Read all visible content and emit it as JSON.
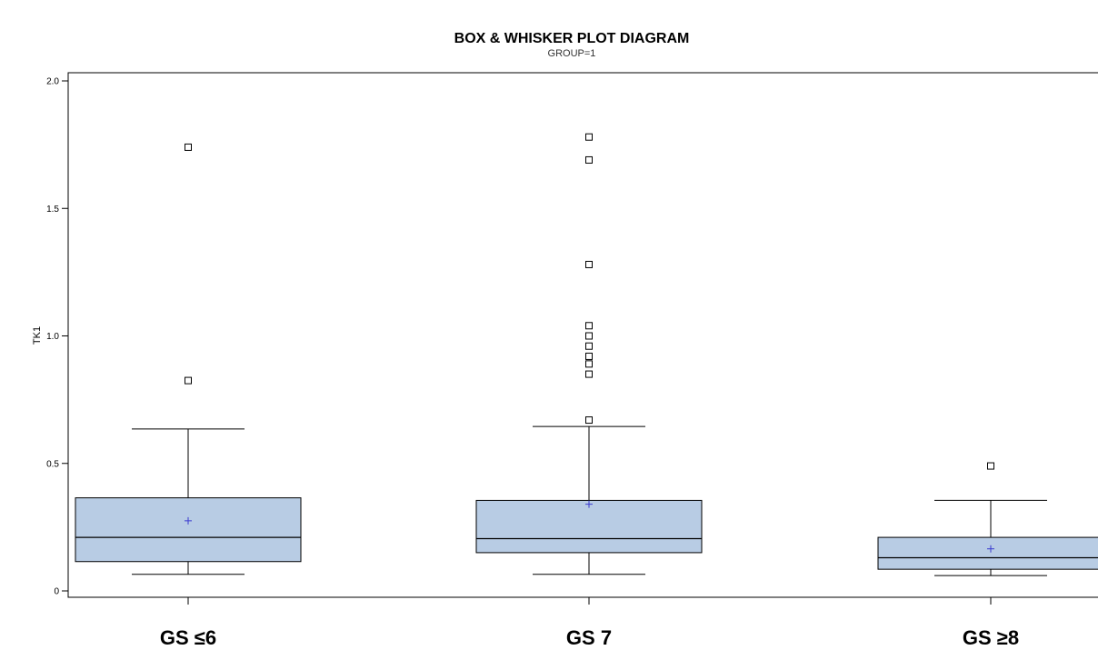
{
  "chart_data": {
    "type": "box",
    "title": "BOX & WHISKER PLOT DIAGRAM",
    "subtitle": "GROUP=1",
    "ylabel": "TK1",
    "xlabel": "",
    "ylim": [
      0,
      2.0
    ],
    "yticks": [
      0,
      0.5,
      1.0,
      1.5,
      2.0
    ],
    "ytick_labels": [
      "0",
      "0.5",
      "1.0",
      "1.5",
      "2.0"
    ],
    "grid": false,
    "box_fill": "#b8cce4",
    "mean_color": "#3a3ad0",
    "categories": [
      "GS ≤6",
      "GS 7",
      "GS ≥8"
    ],
    "boxes": [
      {
        "whisker_low": 0.065,
        "q1": 0.115,
        "median": 0.21,
        "q3": 0.365,
        "whisker_high": 0.635,
        "mean": 0.275,
        "outliers": [
          0.825,
          1.74
        ]
      },
      {
        "whisker_low": 0.065,
        "q1": 0.15,
        "median": 0.205,
        "q3": 0.355,
        "whisker_high": 0.645,
        "mean": 0.34,
        "outliers": [
          0.67,
          0.85,
          0.89,
          0.92,
          0.96,
          1.0,
          1.04,
          1.28,
          1.69,
          1.78
        ]
      },
      {
        "whisker_low": 0.06,
        "q1": 0.085,
        "median": 0.13,
        "q3": 0.21,
        "whisker_high": 0.355,
        "mean": 0.165,
        "outliers": [
          0.49
        ]
      }
    ]
  }
}
